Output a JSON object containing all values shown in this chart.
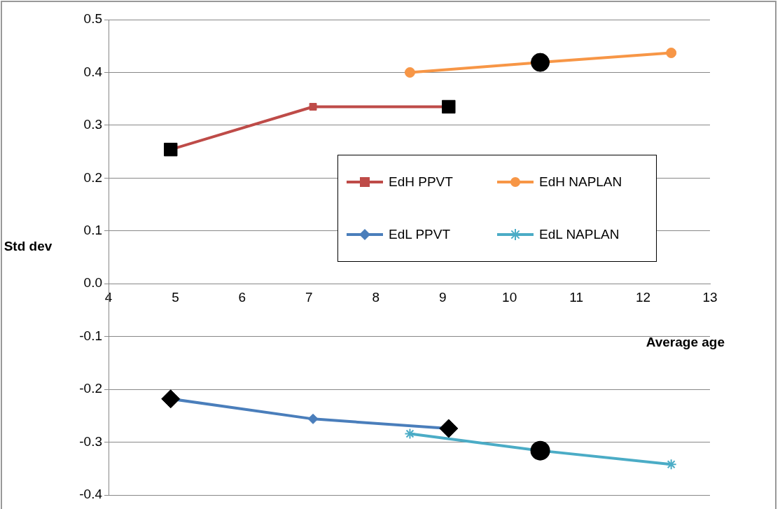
{
  "chart_data": {
    "type": "line",
    "xlabel": "Average age",
    "ylabel": "Std dev",
    "xlim": [
      4,
      13
    ],
    "xticks": [
      4,
      5,
      6,
      7,
      8,
      9,
      10,
      11,
      12,
      13
    ],
    "ylim": [
      -0.4,
      0.5
    ],
    "yticks": [
      -0.4,
      -0.3,
      -0.2,
      -0.1,
      {
        "value": 0,
        "label": "0.0"
      },
      0.1,
      0.2,
      0.3,
      0.4,
      0.5
    ],
    "grid": "y",
    "legend": "right",
    "series": [
      {
        "name": "EdH PPVT",
        "color": "#be4b48",
        "marker": "square",
        "x": [
          4.93,
          7.06,
          9.09
        ],
        "values": [
          0.254,
          0.335,
          0.335
        ],
        "colors": [
          "#000000",
          null,
          "#000000"
        ]
      },
      {
        "name": "EdH NAPLAN",
        "color": "#f79646",
        "marker": "circle",
        "x": [
          8.51,
          10.46,
          12.42
        ],
        "values": [
          0.4,
          0.419,
          0.437
        ],
        "colors": [
          null,
          "#000000",
          null
        ]
      },
      {
        "name": "EdL PPVT",
        "color": "#4a7ebb",
        "marker": "diamond",
        "x": [
          4.93,
          7.06,
          9.09
        ],
        "values": [
          -0.218,
          -0.256,
          -0.274
        ],
        "colors": [
          "#000000",
          null,
          "#000000"
        ]
      },
      {
        "name": "EdL NAPLAN",
        "color": "#4bacc6",
        "marker": "cross",
        "x": [
          8.51,
          10.46,
          12.42
        ],
        "values": [
          -0.284,
          -0.316,
          -0.342
        ],
        "colors": [
          null,
          "#000000",
          null
        ]
      }
    ]
  }
}
